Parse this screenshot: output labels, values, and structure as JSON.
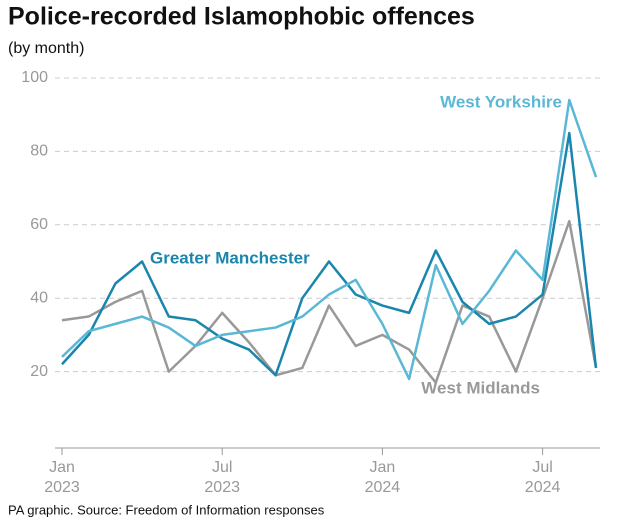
{
  "chart_data": {
    "type": "line",
    "title": "Police-recorded Islamophobic offences",
    "subtitle": "(by month)",
    "source": "PA graphic. Source: Freedom of Information responses",
    "categories": [
      "Jan 2023",
      null,
      null,
      null,
      null,
      null,
      "Jul 2023",
      null,
      null,
      null,
      null,
      null,
      "Jan 2024",
      null,
      null,
      null,
      null,
      null,
      "Jul 2024",
      null,
      null
    ],
    "series": [
      {
        "name": "Greater Manchester",
        "color": "#1a86ad",
        "values": [
          22,
          30,
          44,
          50,
          35,
          34,
          29,
          26,
          19,
          40,
          50,
          41,
          38,
          36,
          53,
          39,
          33,
          35,
          41,
          85,
          21
        ]
      },
      {
        "name": "West Yorkshire",
        "color": "#5ab8d6",
        "values": [
          24,
          31,
          33,
          35,
          32,
          27,
          30,
          31,
          32,
          35,
          41,
          45,
          33,
          18,
          49,
          33,
          42,
          53,
          45,
          94,
          73
        ]
      },
      {
        "name": "West Midlands",
        "color": "#999999",
        "values": [
          34,
          35,
          39,
          42,
          20,
          27,
          36,
          28,
          19,
          21,
          38,
          27,
          30,
          26,
          17,
          38,
          35,
          20,
          40,
          61,
          21
        ]
      }
    ],
    "ylim": [
      0,
      100
    ],
    "yticks": [
      20,
      40,
      60,
      80,
      100
    ],
    "grid": true
  }
}
